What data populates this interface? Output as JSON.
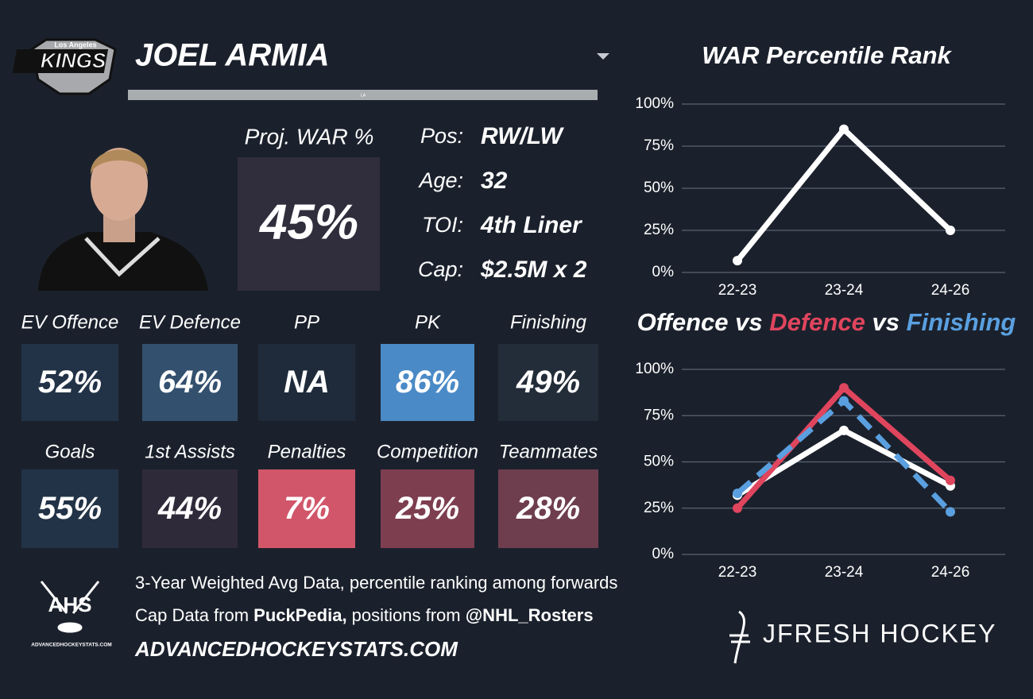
{
  "header": {
    "logo_top": "Los Angeles",
    "logo_main": "KINGS",
    "player": "JOEL ARMIA",
    "bar_text": "LA"
  },
  "proj_war": {
    "label": "Proj. WAR %",
    "value": "45%",
    "color": "#302d3c"
  },
  "info": [
    {
      "label": "Pos:",
      "value": "RW/LW"
    },
    {
      "label": "Age:",
      "value": "32"
    },
    {
      "label": "TOI:",
      "value": "4th Liner"
    },
    {
      "label": "Cap:",
      "value": "$2.5M x 2"
    }
  ],
  "tiles": [
    {
      "label": "EV Offence",
      "value": "52%",
      "color": "#223347"
    },
    {
      "label": "EV Defence",
      "value": "64%",
      "color": "#33506e"
    },
    {
      "label": "PP",
      "value": "NA",
      "color": "#1f2b3a"
    },
    {
      "label": "PK",
      "value": "86%",
      "color": "#4a8ac6"
    },
    {
      "label": "Finishing",
      "value": "49%",
      "color": "#232c39"
    },
    {
      "label": "Goals",
      "value": "55%",
      "color": "#223347"
    },
    {
      "label": "1st Assists",
      "value": "44%",
      "color": "#2f2a3a"
    },
    {
      "label": "Penalties",
      "value": "7%",
      "color": "#d1566a"
    },
    {
      "label": "Competition",
      "value": "25%",
      "color": "#7d3e50"
    },
    {
      "label": "Teammates",
      "value": "28%",
      "color": "#6e3e4e"
    }
  ],
  "footer": {
    "ahs_logo": "AHS",
    "ahs_site": "ADVANCEDHOCKEYSTATS.COM",
    "line1": "3-Year Weighted Avg Data, percentile ranking among forwards",
    "line2": [
      "Cap Data from ",
      "PuckPedia,",
      " positions from ",
      "@NHL_Rosters"
    ],
    "site": "ADVANCEDHOCKEYSTATS.COM",
    "brand": "JFRESH HOCKEY"
  },
  "chart_data": [
    {
      "type": "line",
      "title": "WAR Percentile Rank",
      "categories": [
        "22-23",
        "23-24",
        "24-26"
      ],
      "series": [
        {
          "color": "#ffffff",
          "values": [
            7,
            85,
            25
          ]
        }
      ],
      "ylim": [
        0,
        100
      ],
      "yticks": [
        {
          "value": 0,
          "label": "0%"
        },
        {
          "value": 25,
          "label": "25%"
        },
        {
          "value": 50,
          "label": "50%"
        },
        {
          "value": 75,
          "label": "75%"
        },
        {
          "value": 100,
          "label": "100%"
        }
      ],
      "grid": true
    },
    {
      "type": "line",
      "title_joiner": "vs",
      "categories": [
        "22-23",
        "23-24",
        "24-26"
      ],
      "series": [
        {
          "name": "Offence",
          "color": "#ffffff",
          "values": [
            32,
            67,
            37
          ]
        },
        {
          "name": "Defence",
          "color": "#e0455e",
          "values": [
            25,
            90,
            40
          ]
        },
        {
          "name": "Finishing",
          "color": "#5aa0e0",
          "dashed": true,
          "values": [
            33,
            83,
            23
          ]
        }
      ],
      "ylim": [
        0,
        100
      ],
      "yticks": [
        {
          "value": 0,
          "label": "0%"
        },
        {
          "value": 25,
          "label": "25%"
        },
        {
          "value": 50,
          "label": "50%"
        },
        {
          "value": 75,
          "label": "75%"
        },
        {
          "value": 100,
          "label": "100%"
        }
      ],
      "grid": true
    }
  ]
}
